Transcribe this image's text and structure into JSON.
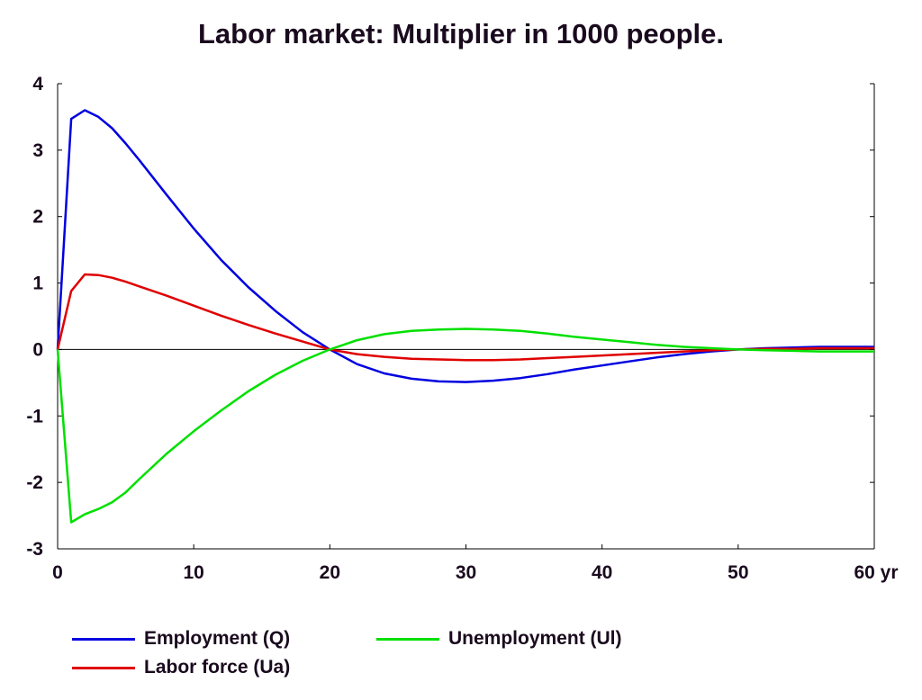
{
  "chart_data": {
    "type": "line",
    "title": "Labor market: Multiplier in 1000 people.",
    "xlabel": "",
    "ylabel": "",
    "xlim": [
      0,
      60
    ],
    "ylim": [
      -3,
      4
    ],
    "x_ticks": [
      0,
      10,
      20,
      30,
      40,
      50,
      60
    ],
    "x_tick_labels": [
      "0",
      "10",
      "20",
      "30",
      "40",
      "50",
      "60 yr"
    ],
    "y_ticks": [
      4,
      3,
      2,
      1,
      0,
      -1,
      -2,
      -3
    ],
    "y_tick_labels": [
      "4",
      "3",
      "2",
      "1",
      "0",
      "-1",
      "-2",
      "-3"
    ],
    "grid": false,
    "legend_position": "bottom",
    "x": [
      0,
      1,
      2,
      3,
      4,
      5,
      6,
      8,
      10,
      12,
      14,
      16,
      18,
      20,
      22,
      24,
      26,
      28,
      30,
      32,
      34,
      36,
      38,
      40,
      42,
      44,
      46,
      48,
      50,
      52,
      54,
      56,
      58,
      60
    ],
    "series": [
      {
        "name": "Employment (Q)",
        "color": "#0000e0",
        "values": [
          0,
          3.47,
          3.6,
          3.5,
          3.33,
          3.1,
          2.85,
          2.33,
          1.82,
          1.35,
          0.94,
          0.58,
          0.26,
          0.0,
          -0.22,
          -0.36,
          -0.44,
          -0.48,
          -0.49,
          -0.47,
          -0.43,
          -0.37,
          -0.3,
          -0.24,
          -0.18,
          -0.12,
          -0.07,
          -0.03,
          0.0,
          0.02,
          0.03,
          0.04,
          0.04,
          0.04
        ]
      },
      {
        "name": "Labor force (Ua)",
        "color": "#e00000",
        "values": [
          0,
          0.88,
          1.13,
          1.12,
          1.08,
          1.02,
          0.95,
          0.81,
          0.66,
          0.51,
          0.37,
          0.24,
          0.12,
          0.0,
          -0.07,
          -0.11,
          -0.14,
          -0.15,
          -0.16,
          -0.16,
          -0.15,
          -0.13,
          -0.11,
          -0.09,
          -0.07,
          -0.05,
          -0.03,
          -0.01,
          0.0,
          0.01,
          0.01,
          0.02,
          0.02,
          0.02
        ]
      },
      {
        "name": "Unemployment (Ul)",
        "color": "#00e000",
        "values": [
          0,
          -2.6,
          -2.48,
          -2.4,
          -2.3,
          -2.15,
          -1.95,
          -1.57,
          -1.23,
          -0.92,
          -0.63,
          -0.38,
          -0.17,
          0.0,
          0.14,
          0.23,
          0.28,
          0.3,
          0.31,
          0.3,
          0.28,
          0.24,
          0.19,
          0.15,
          0.11,
          0.07,
          0.04,
          0.02,
          0.0,
          -0.01,
          -0.02,
          -0.03,
          -0.03,
          -0.03
        ]
      }
    ]
  }
}
